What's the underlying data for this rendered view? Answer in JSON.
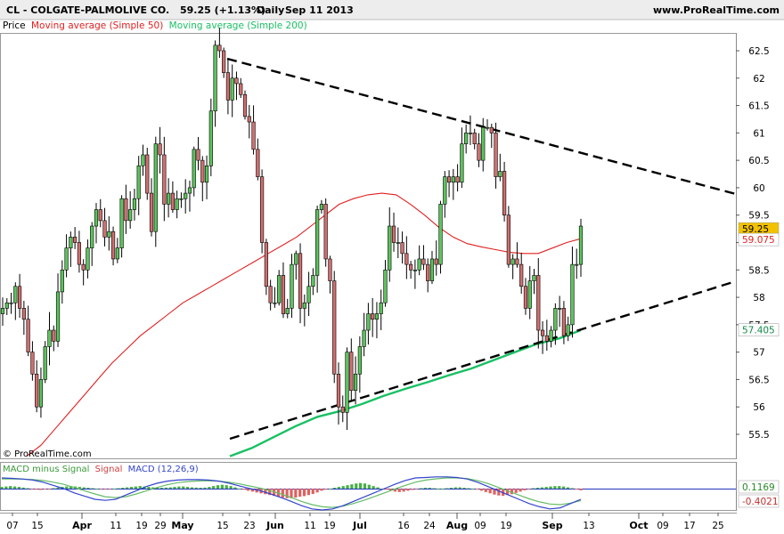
{
  "header": {
    "ticker_title": "CL - COLGATE-PALMOLIVE CO.",
    "quote": "59.25 (+1.13%)",
    "period": "Daily",
    "date": "Sep 11 2013",
    "site": "www.ProRealTime.com"
  },
  "legend": {
    "price": "Price",
    "ma50": "Moving average (Simple 50)",
    "ma200": "Moving average (Simple 200)"
  },
  "watermark": "© ProRealTime.com",
  "macd_legend": {
    "a": "MACD minus Signal",
    "b": "Signal",
    "c": "MACD (12,26,9)"
  },
  "colors": {
    "bull": "#5cc45c",
    "bear": "#d07070",
    "ma50": "#e02020",
    "ma200": "#19c064",
    "trendline": "#000000",
    "macd_line": "#3344cc",
    "signal_line": "#66bb66",
    "price_tag": "#f2c200"
  },
  "chart_data": [
    {
      "type": "candlestick",
      "title": "CL - COLGATE-PALMOLIVE CO.",
      "y_ticks": [
        "62.5",
        "62",
        "61.5",
        "61",
        "60.5",
        "60",
        "59.5",
        "59",
        "58.5",
        "58",
        "57.5",
        "57",
        "56.5",
        "56",
        "55.5"
      ],
      "ylim": [
        55.25,
        62.75
      ],
      "x_ticks": [
        "07",
        "15",
        "Apr",
        "11",
        "19",
        "29",
        "May",
        "15",
        "23",
        "Jun",
        "11",
        "19",
        "Jul",
        "16",
        "24",
        "Aug",
        "09",
        "19",
        "Sep",
        "13",
        "Oct",
        "09",
        "17",
        "25"
      ],
      "last_price": "59.25",
      "ma50_label": "59.075",
      "ma200_label": "57.405",
      "grid": false,
      "closes": [
        57.8,
        57.9,
        57.9,
        58.2,
        57.8,
        57.6,
        57.0,
        56.6,
        56.0,
        56.5,
        57.1,
        57.4,
        57.2,
        58.1,
        58.5,
        58.9,
        59.1,
        59.0,
        58.6,
        58.5,
        58.9,
        59.3,
        59.6,
        59.4,
        59.1,
        59.2,
        58.7,
        58.9,
        59.8,
        59.4,
        59.6,
        59.8,
        60.4,
        60.6,
        59.9,
        59.2,
        60.8,
        60.6,
        59.7,
        59.9,
        59.6,
        59.8,
        59.8,
        59.9,
        60.0,
        60.7,
        60.5,
        60.1,
        60.4,
        61.4,
        62.6,
        62.5,
        62.1,
        61.6,
        62.0,
        61.9,
        61.7,
        61.3,
        61.2,
        60.7,
        60.2,
        59.0,
        58.2,
        57.9,
        57.9,
        58.4,
        57.7,
        57.8,
        58.6,
        58.8,
        57.8,
        57.9,
        58.2,
        58.4,
        59.6,
        59.7,
        58.7,
        58.3,
        56.6,
        56.0,
        55.9,
        57.0,
        56.3,
        56.6,
        57.1,
        57.4,
        57.7,
        57.6,
        57.7,
        57.9,
        58.5,
        59.3,
        59.0,
        59.0,
        58.8,
        58.6,
        58.5,
        58.5,
        58.7,
        58.6,
        58.3,
        58.7,
        58.6,
        59.7,
        60.2,
        60.1,
        60.2,
        60.1,
        60.8,
        61.0,
        61.0,
        60.8,
        60.5,
        61.1,
        61.1,
        61.0,
        60.2,
        60.3,
        59.5,
        58.6,
        58.7,
        58.6,
        58.2,
        57.8,
        58.3,
        58.4,
        57.4,
        57.3,
        57.2,
        57.4,
        57.8,
        57.8,
        57.3,
        57.5,
        58.6,
        58.6,
        59.3
      ],
      "ma50": [
        55.1,
        55.3,
        55.6,
        55.9,
        56.2,
        56.5,
        56.8,
        57.05,
        57.3,
        57.5,
        57.7,
        57.9,
        58.05,
        58.2,
        58.35,
        58.5,
        58.65,
        58.8,
        58.95,
        59.1,
        59.3,
        59.5,
        59.7,
        59.8,
        59.87,
        59.9,
        59.87,
        59.7,
        59.5,
        59.28,
        59.1,
        58.98,
        58.92,
        58.87,
        58.82,
        58.8,
        58.8,
        58.9,
        59.0,
        59.07
      ],
      "ma200": [
        55.1,
        55.25,
        55.45,
        55.65,
        55.82,
        55.92,
        56.05,
        56.2,
        56.33,
        56.45,
        56.58,
        56.7,
        56.85,
        57.0,
        57.15,
        57.25,
        57.4
      ]
    },
    {
      "type": "bar",
      "title": "MACD (12,26,9)",
      "series_names": [
        "MACD minus Signal",
        "Signal",
        "MACD (12,26,9)"
      ],
      "value_labels": [
        "0.1169",
        "-0.4021"
      ],
      "histogram": [
        0.08,
        0.1,
        0.12,
        0.1,
        0.08,
        0.05,
        0.02,
        -0.02,
        -0.05,
        -0.06,
        -0.04,
        -0.02,
        0.02,
        0.05,
        0.08,
        0.1,
        0.12,
        0.1,
        0.08,
        0.06,
        0.04,
        0.02,
        0.0,
        -0.02,
        -0.03,
        -0.02,
        0.0,
        0.02,
        0.04,
        0.06,
        0.08,
        0.1,
        0.12,
        0.1,
        0.08,
        0.06,
        0.05,
        0.04,
        0.05,
        0.06,
        0.08,
        0.1,
        0.1,
        0.08,
        0.06,
        0.05,
        0.04,
        0.05,
        0.08,
        0.12,
        0.16,
        0.18,
        0.16,
        0.12,
        0.06,
        0.0,
        -0.05,
        -0.1,
        -0.14,
        -0.18,
        -0.22,
        -0.26,
        -0.3,
        -0.34,
        -0.38,
        -0.42,
        -0.45,
        -0.45,
        -0.42,
        -0.38,
        -0.35,
        -0.3,
        -0.25,
        -0.18,
        -0.1,
        -0.05,
        0.0,
        0.04,
        0.08,
        0.12,
        0.16,
        0.2,
        0.24,
        0.26,
        0.24,
        0.18,
        0.12,
        0.06,
        0.0,
        -0.05,
        -0.1,
        -0.14,
        -0.16,
        -0.14,
        -0.1,
        -0.06,
        -0.02,
        0.02,
        0.04,
        0.04,
        0.02,
        0.0,
        0.0,
        0.02,
        0.04,
        0.06,
        0.06,
        0.04,
        0.02,
        0.0,
        -0.04,
        -0.1,
        -0.16,
        -0.22,
        -0.28,
        -0.32,
        -0.34,
        -0.3,
        -0.26,
        -0.2,
        -0.14,
        -0.08,
        -0.02,
        0.02,
        0.04,
        0.06,
        0.08,
        0.1,
        0.12,
        0.12,
        0.1,
        0.06,
        0.02,
        -0.04,
        -0.08
      ],
      "macd": [
        0.5,
        0.48,
        0.45,
        0.4,
        0.3,
        0.15,
        0.0,
        -0.2,
        -0.35,
        -0.5,
        -0.55,
        -0.5,
        -0.3,
        -0.1,
        0.1,
        0.25,
        0.35,
        0.4,
        0.42,
        0.42,
        0.4,
        0.35,
        0.25,
        0.12,
        0.0,
        -0.1,
        -0.25,
        -0.42,
        -0.6,
        -0.8,
        -0.95,
        -1.0,
        -0.95,
        -0.8,
        -0.6,
        -0.4,
        -0.2,
        0.0,
        0.2,
        0.38,
        0.5,
        0.52,
        0.55,
        0.55,
        0.52,
        0.45,
        0.3,
        0.1,
        -0.1,
        -0.3,
        -0.5,
        -0.7,
        -0.85,
        -0.95,
        -0.9,
        -0.7,
        -0.5
      ],
      "signal": [
        0.45,
        0.45,
        0.44,
        0.42,
        0.38,
        0.3,
        0.2,
        0.05,
        -0.1,
        -0.25,
        -0.38,
        -0.42,
        -0.38,
        -0.25,
        -0.1,
        0.05,
        0.18,
        0.28,
        0.33,
        0.36,
        0.37,
        0.35,
        0.3,
        0.22,
        0.12,
        0.02,
        -0.1,
        -0.25,
        -0.42,
        -0.6,
        -0.75,
        -0.85,
        -0.88,
        -0.82,
        -0.7,
        -0.55,
        -0.38,
        -0.2,
        -0.02,
        0.15,
        0.3,
        0.4,
        0.46,
        0.5,
        0.5,
        0.47,
        0.38,
        0.24,
        0.06,
        -0.12,
        -0.3,
        -0.48,
        -0.62,
        -0.72,
        -0.75,
        -0.68,
        -0.56
      ]
    }
  ]
}
